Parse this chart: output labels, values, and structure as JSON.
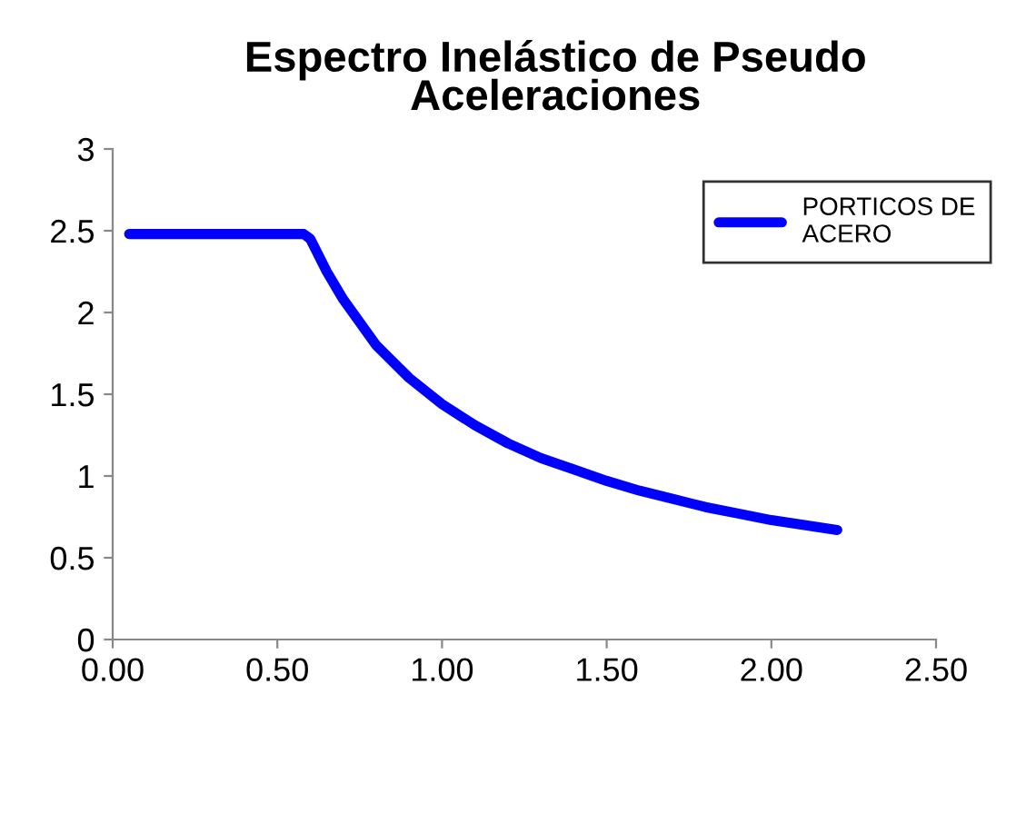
{
  "chart_data": {
    "type": "line",
    "title": "Espectro Inelástico de Pseudo\nAceleraciones",
    "x": [
      0.05,
      0.58,
      0.6,
      0.65,
      0.7,
      0.8,
      0.9,
      1.0,
      1.1,
      1.2,
      1.3,
      1.4,
      1.5,
      1.6,
      1.7,
      1.8,
      1.9,
      2.0,
      2.1,
      2.2
    ],
    "series": [
      {
        "name": "PORTICOS DE\nACERO",
        "color": "#0000ff",
        "values": [
          2.48,
          2.48,
          2.45,
          2.25,
          2.08,
          1.8,
          1.6,
          1.44,
          1.31,
          1.2,
          1.11,
          1.04,
          0.97,
          0.91,
          0.86,
          0.81,
          0.77,
          0.73,
          0.7,
          0.67
        ]
      }
    ],
    "xlim": [
      0,
      2.5
    ],
    "xticks": [
      {
        "value": 0,
        "label": "0.00"
      },
      {
        "value": 0.5,
        "label": "0.50"
      },
      {
        "value": 1,
        "label": "1.00"
      },
      {
        "value": 1.5,
        "label": "1.50"
      },
      {
        "value": 2,
        "label": "2.00"
      },
      {
        "value": 2.5,
        "label": "2.50"
      }
    ],
    "ylim": [
      0,
      3
    ],
    "yticks": [
      0,
      0.5,
      1,
      1.5,
      2,
      2.5,
      3
    ],
    "grid": false,
    "legend": "top right",
    "marker": "none",
    "line_style": "solid"
  }
}
